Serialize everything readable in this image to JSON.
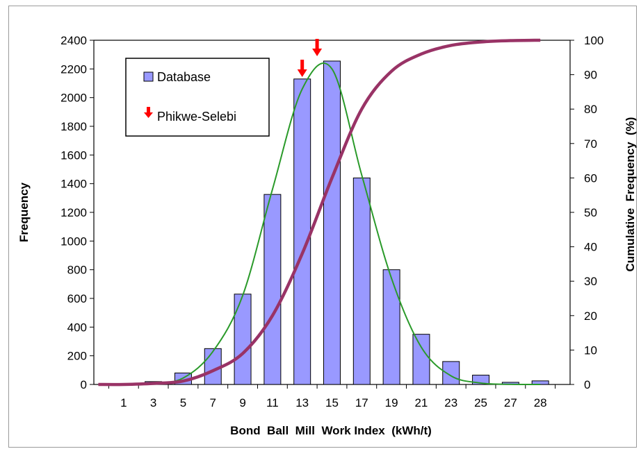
{
  "chart_data": {
    "type": "bar",
    "xlabel": "Bond  Ball  Mill  Work Index  (kWh/t)",
    "ylabel": "Frequency",
    "y2label": "Cumulative  Frequency  (%)",
    "categories": [
      "1",
      "3",
      "5",
      "7",
      "9",
      "11",
      "13",
      "15",
      "17",
      "19",
      "21",
      "23",
      "25",
      "27",
      "28"
    ],
    "ylim": [
      0,
      2400
    ],
    "yticks": [
      0,
      200,
      400,
      600,
      800,
      1000,
      1200,
      1400,
      1600,
      1800,
      2000,
      2200,
      2400
    ],
    "y2lim": [
      0,
      100
    ],
    "y2ticks": [
      0,
      10,
      20,
      30,
      40,
      50,
      60,
      70,
      80,
      90,
      100
    ],
    "grid": false,
    "legend_position": "top-left",
    "series": [
      {
        "name": "Database",
        "kind": "bar",
        "color": "#9999ff",
        "values": [
          0,
          20,
          80,
          250,
          630,
          1325,
          2130,
          2255,
          1440,
          800,
          350,
          160,
          65,
          15,
          25
        ]
      },
      {
        "kind": "line",
        "color": "#2a9a2a",
        "axis": "left",
        "values": [
          0,
          5,
          45,
          230,
          620,
          1360,
          2060,
          2200,
          1460,
          740,
          260,
          60,
          10,
          1,
          0
        ]
      },
      {
        "kind": "line",
        "color": "#993366",
        "axis": "right",
        "values": [
          0,
          0.3,
          1,
          4,
          9,
          20,
          38,
          60,
          80,
          91,
          96,
          98.5,
          99.5,
          99.9,
          100
        ]
      }
    ],
    "markers": {
      "name": "Phikwe-Selebi",
      "color": "#ff0000",
      "x_values": [
        13,
        14
      ]
    }
  }
}
